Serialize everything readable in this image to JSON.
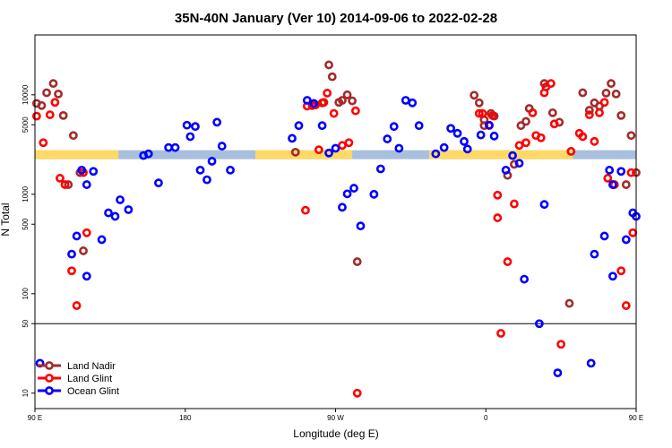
{
  "chart_data": {
    "type": "scatter",
    "title": "35N-40N January (Ver 10)   2014-09-06 to 2022-02-28",
    "xlabel": "Longitude (deg E)",
    "ylabel": "N Total",
    "y_scale": "log",
    "xlim": [
      90,
      450
    ],
    "ylim": [
      7,
      40000
    ],
    "x_ticks": [
      {
        "value": 90,
        "label": "90 E"
      },
      {
        "value": 180,
        "label": "180"
      },
      {
        "value": 270,
        "label": "90 W"
      },
      {
        "value": 360,
        "label": "0"
      },
      {
        "value": 450,
        "label": "90 E"
      },
      {
        "value": 540,
        "label": "180"
      }
    ],
    "y_ticks": [
      {
        "value": 10,
        "label": "10"
      },
      {
        "value": 50,
        "label": "50"
      },
      {
        "value": 100,
        "label": "100"
      },
      {
        "value": 500,
        "label": "500"
      },
      {
        "value": 1000,
        "label": "1000"
      },
      {
        "value": 5000,
        "label": "5000"
      },
      {
        "value": 10000,
        "label": "10000"
      }
    ],
    "reference_line": {
      "y": 50,
      "color": "#000000"
    },
    "land_ocean_band": {
      "y": 2500,
      "land_color": "#FFD966",
      "ocean_color": "#A8C0DE",
      "land_segments": [
        [
          90,
          140
        ],
        [
          222,
          280
        ],
        [
          326,
          412
        ]
      ]
    },
    "legend": {
      "position": "bottom-left",
      "entries": [
        {
          "name": "Land Nadir",
          "color": "#A52A2A"
        },
        {
          "name": "Land Glint",
          "color": "#FF0000"
        },
        {
          "name": "Ocean Glint",
          "color": "#0000FF"
        }
      ]
    },
    "series": [
      {
        "name": "Land Nadir",
        "color": "#A52A2A",
        "points": [
          [
            91,
            8200
          ],
          [
            94,
            7800
          ],
          [
            97,
            10500
          ],
          [
            101,
            13000
          ],
          [
            104,
            10200
          ],
          [
            107,
            6200
          ],
          [
            110,
            1250
          ],
          [
            113,
            3900
          ],
          [
            117,
            1650
          ],
          [
            119,
            270
          ],
          [
            246,
            2650
          ],
          [
            262,
            8300
          ],
          [
            266,
            20000
          ],
          [
            268,
            15200
          ],
          [
            272,
            8400
          ],
          [
            274,
            8800
          ],
          [
            277,
            10000
          ],
          [
            280,
            8700
          ],
          [
            283,
            210
          ],
          [
            353,
            9900
          ],
          [
            356,
            8300
          ],
          [
            359,
            5600
          ],
          [
            359,
            4900
          ],
          [
            363,
            6500
          ],
          [
            365,
            6100
          ],
          [
            373,
            1550
          ],
          [
            377,
            2000
          ],
          [
            381,
            4900
          ],
          [
            384,
            5400
          ],
          [
            386,
            7300
          ],
          [
            395,
            13000
          ],
          [
            400,
            6600
          ],
          [
            404,
            5300
          ],
          [
            410,
            80
          ],
          [
            418,
            10500
          ],
          [
            422,
            7000
          ],
          [
            425,
            8300
          ],
          [
            428,
            7700
          ],
          [
            432,
            10400
          ],
          [
            435,
            13000
          ],
          [
            438,
            10200
          ],
          [
            441,
            6200
          ],
          [
            444,
            1250
          ],
          [
            447,
            3900
          ],
          [
            450,
            1650
          ]
        ]
      },
      {
        "name": "Land Glint",
        "color": "#FF0000",
        "points": [
          [
            91,
            6100
          ],
          [
            95,
            3300
          ],
          [
            99,
            6300
          ],
          [
            102,
            8400
          ],
          [
            105,
            1450
          ],
          [
            108,
            1250
          ],
          [
            112,
            170
          ],
          [
            115,
            76
          ],
          [
            119,
            1650
          ],
          [
            121,
            410
          ],
          [
            252,
            690
          ],
          [
            253,
            7700
          ],
          [
            256,
            7800
          ],
          [
            258,
            7900
          ],
          [
            260,
            2800
          ],
          [
            263,
            8400
          ],
          [
            265,
            10400
          ],
          [
            269,
            6500
          ],
          [
            274,
            3100
          ],
          [
            278,
            3300
          ],
          [
            282,
            6900
          ],
          [
            283,
            10
          ],
          [
            356,
            6500
          ],
          [
            358,
            6500
          ],
          [
            362,
            4900
          ],
          [
            364,
            6200
          ],
          [
            367,
            980
          ],
          [
            367,
            580
          ],
          [
            369,
            40
          ],
          [
            373,
            210
          ],
          [
            377,
            800
          ],
          [
            380,
            3100
          ],
          [
            384,
            3300
          ],
          [
            388,
            6600
          ],
          [
            390,
            3900
          ],
          [
            393,
            3700
          ],
          [
            395,
            10500
          ],
          [
            396,
            12000
          ],
          [
            399,
            13000
          ],
          [
            401,
            5100
          ],
          [
            405,
            31
          ],
          [
            411,
            2700
          ],
          [
            416,
            4100
          ],
          [
            418,
            3800
          ],
          [
            422,
            6300
          ],
          [
            425,
            3400
          ],
          [
            428,
            6600
          ],
          [
            431,
            8400
          ],
          [
            433,
            1450
          ],
          [
            437,
            1250
          ],
          [
            441,
            170
          ],
          [
            444,
            76
          ],
          [
            447,
            1650
          ],
          [
            448,
            410
          ]
        ]
      },
      {
        "name": "Ocean Glint",
        "color": "#0000FF",
        "points": [
          [
            93,
            20
          ],
          [
            112,
            250
          ],
          [
            115,
            380
          ],
          [
            118,
            1750
          ],
          [
            121,
            1250
          ],
          [
            121,
            150
          ],
          [
            125,
            1700
          ],
          [
            130,
            350
          ],
          [
            134,
            650
          ],
          [
            138,
            600
          ],
          [
            141,
            880
          ],
          [
            146,
            700
          ],
          [
            155,
            2450
          ],
          [
            158,
            2550
          ],
          [
            164,
            1300
          ],
          [
            170,
            2950
          ],
          [
            174,
            2950
          ],
          [
            181,
            4950
          ],
          [
            183,
            3800
          ],
          [
            186,
            4800
          ],
          [
            189,
            1750
          ],
          [
            193,
            1400
          ],
          [
            196,
            2150
          ],
          [
            199,
            5300
          ],
          [
            202,
            3050
          ],
          [
            207,
            1750
          ],
          [
            244,
            3650
          ],
          [
            248,
            4900
          ],
          [
            253,
            8800
          ],
          [
            257,
            8200
          ],
          [
            262,
            4900
          ],
          [
            266,
            2600
          ],
          [
            270,
            2900
          ],
          [
            274,
            740
          ],
          [
            277,
            1010
          ],
          [
            281,
            1150
          ],
          [
            285,
            480
          ],
          [
            293,
            1000
          ],
          [
            297,
            1800
          ],
          [
            301,
            3600
          ],
          [
            305,
            4800
          ],
          [
            308,
            2900
          ],
          [
            312,
            8800
          ],
          [
            316,
            8300
          ],
          [
            320,
            4900
          ],
          [
            330,
            2550
          ],
          [
            335,
            2950
          ],
          [
            339,
            4600
          ],
          [
            343,
            4100
          ],
          [
            347,
            3400
          ],
          [
            349,
            2850
          ],
          [
            357,
            3950
          ],
          [
            362,
            4950
          ],
          [
            365,
            3850
          ],
          [
            372,
            1750
          ],
          [
            376,
            2450
          ],
          [
            380,
            2050
          ],
          [
            383,
            140
          ],
          [
            392,
            50
          ],
          [
            395,
            790
          ],
          [
            403,
            16
          ],
          [
            423,
            20
          ],
          [
            425,
            250
          ],
          [
            431,
            380
          ],
          [
            434,
            1750
          ],
          [
            436,
            1250
          ],
          [
            436,
            150
          ],
          [
            441,
            1700
          ],
          [
            444,
            350
          ],
          [
            448,
            650
          ]
        ]
      },
      {
        "name": "Ocean Glint (continued)",
        "color": "#0000FF",
        "legend": false,
        "points": [
          [
            450,
            600
          ],
          [
            455,
            880
          ],
          [
            458,
            700
          ],
          [
            468,
            2450
          ],
          [
            470,
            2550
          ]
        ]
      }
    ]
  }
}
